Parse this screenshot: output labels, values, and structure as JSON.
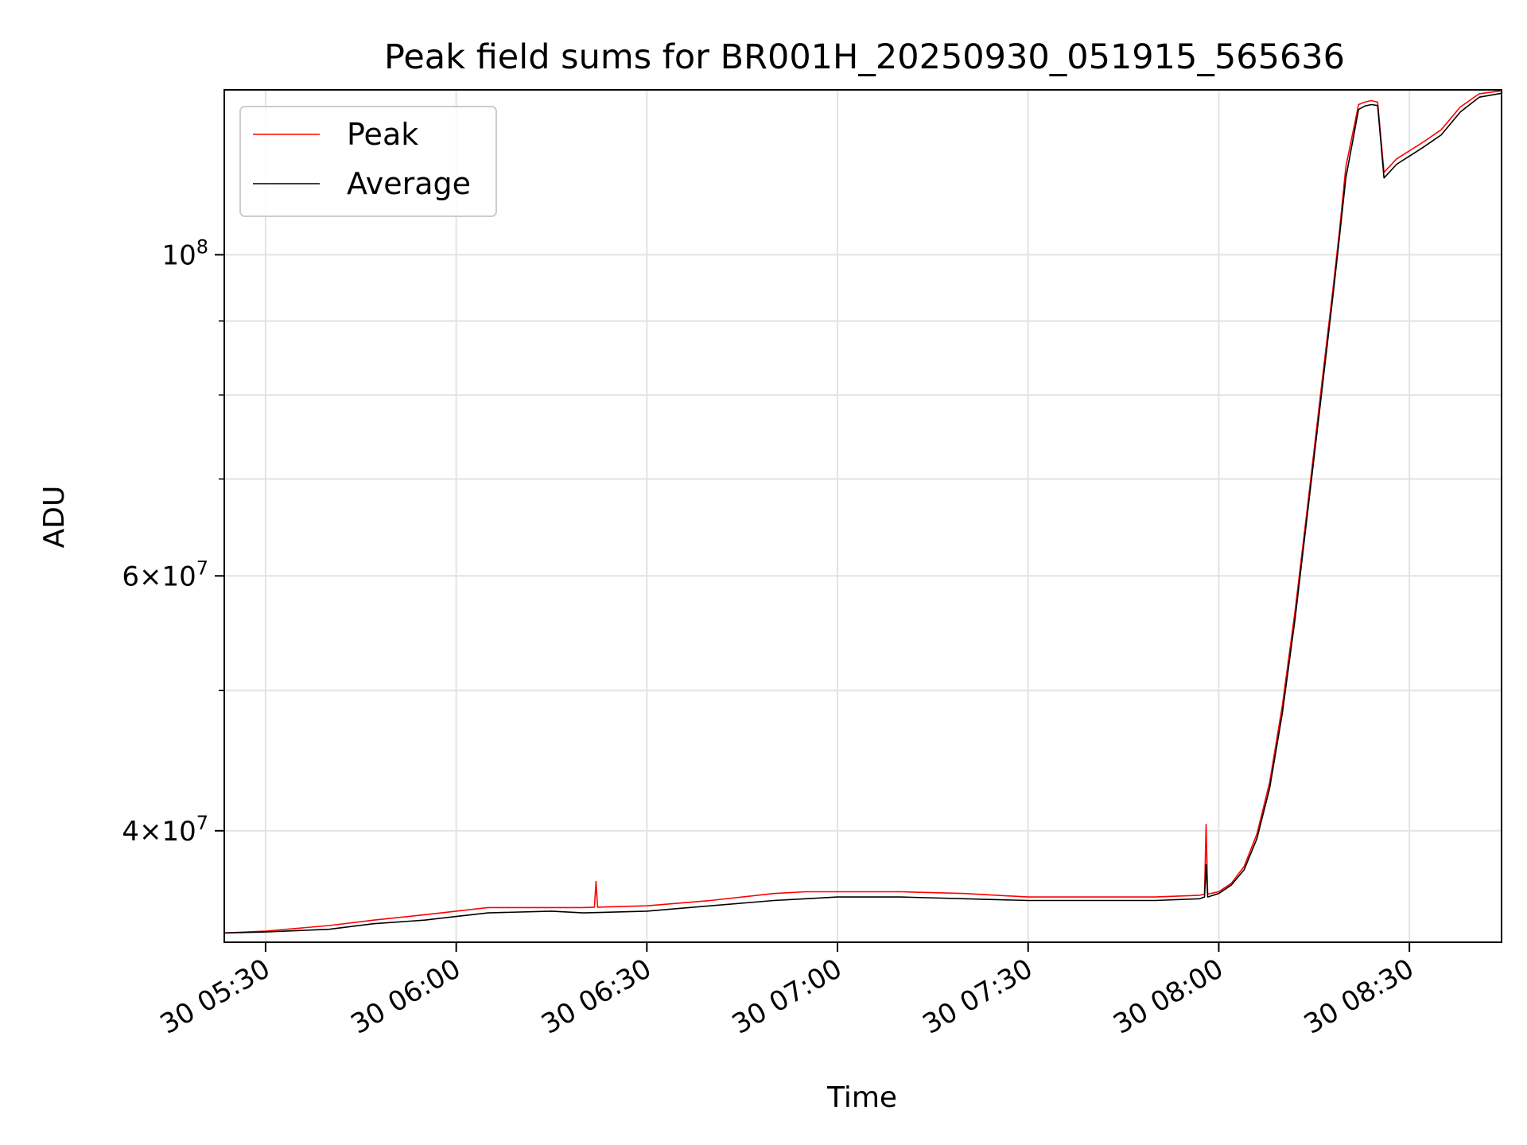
{
  "chart_data": {
    "type": "line",
    "title": "Peak field sums for BR001H_20250930_051915_565636",
    "xlabel": "Time",
    "ylabel": "ADU",
    "y_scale": "log",
    "ylim": [
      33500000,
      130000000
    ],
    "xlim": [
      "2025-09-30 05:23:30",
      "2025-09-30 08:44:30"
    ],
    "x_ticks": [
      {
        "value": "2025-09-30 05:30",
        "label": "30 05:30"
      },
      {
        "value": "2025-09-30 06:00",
        "label": "30 06:00"
      },
      {
        "value": "2025-09-30 06:30",
        "label": "30 06:30"
      },
      {
        "value": "2025-09-30 07:00",
        "label": "30 07:00"
      },
      {
        "value": "2025-09-30 07:30",
        "label": "30 07:30"
      },
      {
        "value": "2025-09-30 08:00",
        "label": "30 08:00"
      },
      {
        "value": "2025-09-30 08:30",
        "label": "30 08:30"
      }
    ],
    "y_major_ticks": [
      {
        "value": 40000000,
        "base": "4×10",
        "exp": "7"
      },
      {
        "value": 60000000,
        "base": "6×10",
        "exp": "7"
      },
      {
        "value": 100000000,
        "base": "10",
        "exp": "8"
      }
    ],
    "y_minor_ticks": [
      50000000,
      70000000,
      80000000,
      90000000
    ],
    "grid": true,
    "legend": "top-left",
    "x": [
      "2025-09-30 05:23:30",
      "2025-09-30 05:30",
      "2025-09-30 05:40",
      "2025-09-30 05:47",
      "2025-09-30 05:55",
      "2025-09-30 06:00",
      "2025-09-30 06:05",
      "2025-09-30 06:15",
      "2025-09-30 06:20",
      "2025-09-30 06:30",
      "2025-09-30 06:40",
      "2025-09-30 06:50",
      "2025-09-30 06:55",
      "2025-09-30 07:00",
      "2025-09-30 07:10",
      "2025-09-30 07:20",
      "2025-09-30 07:30",
      "2025-09-30 07:40",
      "2025-09-30 07:50",
      "2025-09-30 07:57",
      "2025-09-30 08:00",
      "2025-09-30 08:02",
      "2025-09-30 08:04",
      "2025-09-30 08:06",
      "2025-09-30 08:08",
      "2025-09-30 08:10",
      "2025-09-30 08:12",
      "2025-09-30 08:14",
      "2025-09-30 08:16",
      "2025-09-30 08:18",
      "2025-09-30 08:19",
      "2025-09-30 08:20",
      "2025-09-30 08:22",
      "2025-09-30 08:23",
      "2025-09-30 08:24",
      "2025-09-30 08:25",
      "2025-09-30 08:26",
      "2025-09-30 08:28",
      "2025-09-30 08:32",
      "2025-09-30 08:35",
      "2025-09-30 08:38",
      "2025-09-30 08:41",
      "2025-09-30 08:44:30"
    ],
    "series": [
      {
        "name": "Peak",
        "color": "#ff0000",
        "values": [
          34000000,
          34100000,
          34400000,
          34700000,
          35000000,
          35200000,
          35400000,
          35400000,
          35400000,
          35500000,
          35800000,
          36200000,
          36300000,
          36300000,
          36300000,
          36200000,
          36000000,
          36000000,
          36000000,
          36100000,
          36300000,
          36800000,
          37800000,
          39800000,
          43200000,
          48800000,
          56700000,
          67200000,
          80000000,
          95000000,
          104000000,
          115000000,
          127000000,
          127500000,
          127800000,
          127500000,
          114000000,
          116500000,
          119500000,
          122000000,
          126500000,
          129200000,
          129800000
        ]
      },
      {
        "name": "Average",
        "color": "#000000",
        "values": [
          34000000,
          34050000,
          34200000,
          34500000,
          34700000,
          34900000,
          35100000,
          35200000,
          35100000,
          35200000,
          35500000,
          35800000,
          35900000,
          36000000,
          36000000,
          35900000,
          35800000,
          35800000,
          35800000,
          35900000,
          36200000,
          36700000,
          37600000,
          39500000,
          42800000,
          48200000,
          56000000,
          66500000,
          79000000,
          94000000,
          103000000,
          113000000,
          126000000,
          126700000,
          127000000,
          126800000,
          113000000,
          115500000,
          118500000,
          121000000,
          125500000,
          128500000,
          129300000
        ]
      }
    ],
    "annotations_spikes": [
      {
        "series": "Peak",
        "x": "2025-09-30 06:22",
        "value": 36900000
      },
      {
        "series": "Peak",
        "x": "2025-09-30 07:58",
        "value": 40400000
      },
      {
        "series": "Average",
        "x": "2025-09-30 07:58",
        "value": 37900000
      }
    ]
  }
}
